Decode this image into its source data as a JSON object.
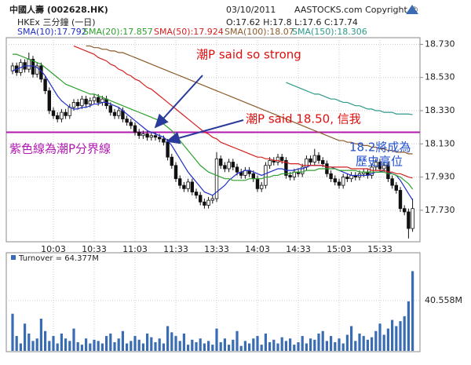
{
  "chart_data": {
    "type": "candlestick",
    "title": "中國人壽 (002628.HK)",
    "subtitle": "HKEx 三分鐘 (一日)",
    "date": "03/10/2011",
    "quote": "O:17.62  H:17.8  L:17.6  C:17.74",
    "copyright": "AASTOCKS.com Copyright ©",
    "categories": [
      null,
      null,
      null,
      null,
      null,
      null,
      null,
      null,
      null,
      null,
      "10:03",
      null,
      null,
      null,
      null,
      null,
      null,
      null,
      null,
      null,
      "10:33",
      null,
      null,
      null,
      null,
      null,
      null,
      null,
      null,
      null,
      "11:03",
      null,
      null,
      null,
      null,
      null,
      null,
      null,
      null,
      null,
      "11:33",
      null,
      null,
      null,
      null,
      null,
      null,
      null,
      null,
      null,
      "13:33",
      null,
      null,
      null,
      null,
      null,
      null,
      null,
      null,
      null,
      "14:03",
      null,
      null,
      null,
      null,
      null,
      null,
      null,
      null,
      null,
      "14:33",
      null,
      null,
      null,
      null,
      null,
      null,
      null,
      null,
      null,
      "15:03",
      null,
      null,
      null,
      null,
      null,
      null,
      null,
      null,
      null,
      "15:33",
      null,
      null,
      null,
      null,
      null,
      null,
      null,
      null
    ],
    "open": [
      18.57,
      18.6,
      18.56,
      18.62,
      18.58,
      18.64,
      18.55,
      18.6,
      18.52,
      18.45,
      18.33,
      18.3,
      18.28,
      18.32,
      18.3,
      18.35,
      18.38,
      18.36,
      18.4,
      18.37,
      18.39,
      18.41,
      18.38,
      18.4,
      18.36,
      18.32,
      18.3,
      18.33,
      18.28,
      18.26,
      18.24,
      18.2,
      18.18,
      18.19,
      18.17,
      18.18,
      18.17,
      18.16,
      18.14,
      18.05,
      18.0,
      17.92,
      17.88,
      17.86,
      17.9,
      17.84,
      17.82,
      17.78,
      17.76,
      17.79,
      17.8,
      18.04,
      18.0,
      17.98,
      18.02,
      17.99,
      17.96,
      17.94,
      17.97,
      17.95,
      17.92,
      17.86,
      17.88,
      18.0,
      18.03,
      18.02,
      18.05,
      18.03,
      17.94,
      17.93,
      17.96,
      17.95,
      17.99,
      18.04,
      18.02,
      18.06,
      18.03,
      18.01,
      17.95,
      17.92,
      17.9,
      17.88,
      17.93,
      17.92,
      17.94,
      17.93,
      17.95,
      17.96,
      17.94,
      17.99,
      18.02,
      17.98,
      18.0,
      17.92,
      17.88,
      17.85,
      17.74,
      17.72,
      17.62
    ],
    "high": [
      18.62,
      18.62,
      18.64,
      18.64,
      18.68,
      18.66,
      18.62,
      18.62,
      18.54,
      18.47,
      18.35,
      18.32,
      18.34,
      18.34,
      18.37,
      18.4,
      18.4,
      18.42,
      18.42,
      18.41,
      18.43,
      18.43,
      18.42,
      18.42,
      18.38,
      18.34,
      18.35,
      18.35,
      18.3,
      18.28,
      18.26,
      18.22,
      18.21,
      18.21,
      18.2,
      18.2,
      18.19,
      18.18,
      18.16,
      18.07,
      18.02,
      17.94,
      17.9,
      17.92,
      17.92,
      17.86,
      17.84,
      17.8,
      17.81,
      17.82,
      18.08,
      18.06,
      18.02,
      18.04,
      18.04,
      18.01,
      17.98,
      17.99,
      17.99,
      17.97,
      17.94,
      17.9,
      18.02,
      18.05,
      18.05,
      18.07,
      18.07,
      18.05,
      17.96,
      17.98,
      17.98,
      18.01,
      18.06,
      18.06,
      18.1,
      18.08,
      18.05,
      18.03,
      17.97,
      17.94,
      17.92,
      17.95,
      17.95,
      17.96,
      17.96,
      17.97,
      17.98,
      17.98,
      18.01,
      18.04,
      18.04,
      18.02,
      18.02,
      17.94,
      17.9,
      17.87,
      17.76,
      17.74,
      17.8
    ],
    "low": [
      18.55,
      18.54,
      18.54,
      18.56,
      18.56,
      18.53,
      18.53,
      18.5,
      18.43,
      18.31,
      18.28,
      18.26,
      18.26,
      18.28,
      18.28,
      18.33,
      18.34,
      18.34,
      18.35,
      18.35,
      18.37,
      18.36,
      18.36,
      18.34,
      18.3,
      18.28,
      18.28,
      18.26,
      18.24,
      18.22,
      18.18,
      18.16,
      18.16,
      18.15,
      18.15,
      18.15,
      18.14,
      18.12,
      18.03,
      17.98,
      17.9,
      17.86,
      17.84,
      17.84,
      17.82,
      17.8,
      17.76,
      17.74,
      17.74,
      17.77,
      17.78,
      17.98,
      17.96,
      17.96,
      17.97,
      17.94,
      17.92,
      17.92,
      17.93,
      17.9,
      17.84,
      17.84,
      17.86,
      17.98,
      18.0,
      18.0,
      18.01,
      17.92,
      17.91,
      17.91,
      17.93,
      17.93,
      17.97,
      18.0,
      18.0,
      18.01,
      17.99,
      17.93,
      17.9,
      17.88,
      17.86,
      17.86,
      17.9,
      17.9,
      17.91,
      17.91,
      17.93,
      17.92,
      17.92,
      17.97,
      17.96,
      17.96,
      17.9,
      17.86,
      17.83,
      17.72,
      17.7,
      17.56,
      17.6
    ],
    "close": [
      18.6,
      18.56,
      18.62,
      18.58,
      18.64,
      18.55,
      18.6,
      18.52,
      18.45,
      18.33,
      18.3,
      18.28,
      18.32,
      18.3,
      18.35,
      18.38,
      18.36,
      18.4,
      18.37,
      18.39,
      18.41,
      18.38,
      18.4,
      18.36,
      18.32,
      18.3,
      18.33,
      18.28,
      18.26,
      18.24,
      18.2,
      18.18,
      18.19,
      18.17,
      18.18,
      18.17,
      18.16,
      18.14,
      18.05,
      18.0,
      17.92,
      17.88,
      17.86,
      17.9,
      17.84,
      17.82,
      17.78,
      17.76,
      17.79,
      17.8,
      18.04,
      18.0,
      17.98,
      18.02,
      17.99,
      17.96,
      17.94,
      17.97,
      17.95,
      17.92,
      17.86,
      17.88,
      18.0,
      18.03,
      18.02,
      18.05,
      18.03,
      17.94,
      17.93,
      17.96,
      17.95,
      17.99,
      18.04,
      18.02,
      18.06,
      18.03,
      18.01,
      17.95,
      17.92,
      17.9,
      17.88,
      17.93,
      17.92,
      17.94,
      17.93,
      17.95,
      17.96,
      17.94,
      17.99,
      18.02,
      17.98,
      18.0,
      17.92,
      17.88,
      17.85,
      17.74,
      17.72,
      17.62,
      17.74
    ],
    "lines": [
      {
        "name": "SMA(10):17.792",
        "color": "#1f2fc8",
        "values": [
          18.57,
          18.58,
          18.59,
          18.6,
          18.6,
          18.6,
          18.59,
          18.57,
          18.54,
          18.5,
          18.46,
          18.42,
          18.39,
          18.37,
          18.35,
          18.34,
          18.34,
          18.35,
          18.35,
          18.36,
          18.37,
          18.37,
          18.38,
          18.38,
          18.37,
          18.36,
          18.35,
          18.33,
          18.31,
          18.29,
          18.27,
          18.25,
          18.23,
          18.21,
          18.2,
          18.19,
          18.18,
          18.17,
          18.15,
          18.12,
          18.08,
          18.04,
          18.0,
          17.96,
          17.93,
          17.9,
          17.87,
          17.84,
          17.83,
          17.82,
          17.84,
          17.86,
          17.88,
          17.91,
          17.93,
          17.95,
          17.96,
          17.97,
          17.97,
          17.96,
          17.95,
          17.94,
          17.95,
          17.96,
          17.97,
          17.98,
          17.98,
          17.97,
          17.97,
          17.97,
          17.98,
          17.98,
          17.99,
          18.0,
          18.0,
          18.0,
          18.0,
          17.99,
          17.99,
          17.98,
          17.97,
          17.96,
          17.95,
          17.94,
          17.94,
          17.94,
          17.94,
          17.94,
          17.95,
          17.96,
          17.96,
          17.97,
          17.96,
          17.95,
          17.94,
          17.91,
          17.87,
          17.83,
          17.792
        ]
      },
      {
        "name": "SMA(20):17.857",
        "color": "#2ea02e",
        "values": [
          18.67,
          18.67,
          18.66,
          18.65,
          18.64,
          18.63,
          18.62,
          18.61,
          18.59,
          18.57,
          18.55,
          18.53,
          18.51,
          18.49,
          18.48,
          18.47,
          18.46,
          18.45,
          18.44,
          18.43,
          18.43,
          18.42,
          18.41,
          18.4,
          18.39,
          18.38,
          18.37,
          18.36,
          18.35,
          18.34,
          18.33,
          18.32,
          18.31,
          18.3,
          18.29,
          18.28,
          18.27,
          18.25,
          18.23,
          18.21,
          18.18,
          18.15,
          18.12,
          18.09,
          18.06,
          18.03,
          18.0,
          17.98,
          17.96,
          17.95,
          17.94,
          17.93,
          17.92,
          17.92,
          17.91,
          17.91,
          17.91,
          17.91,
          17.92,
          17.92,
          17.92,
          17.92,
          17.93,
          17.93,
          17.94,
          17.94,
          17.95,
          17.95,
          17.95,
          17.96,
          17.96,
          17.96,
          17.97,
          17.97,
          17.97,
          17.98,
          17.98,
          17.98,
          17.98,
          17.98,
          17.97,
          17.97,
          17.97,
          17.97,
          17.97,
          17.96,
          17.96,
          17.96,
          17.96,
          17.96,
          17.96,
          17.96,
          17.95,
          17.95,
          17.94,
          17.93,
          17.91,
          17.89,
          17.857
        ]
      },
      {
        "name": "SMA(50):17.924",
        "color": "#d42020",
        "values": [
          null,
          null,
          null,
          null,
          null,
          null,
          null,
          null,
          null,
          null,
          null,
          null,
          null,
          null,
          null,
          18.72,
          18.71,
          18.7,
          18.69,
          18.68,
          18.67,
          18.65,
          18.64,
          18.63,
          18.61,
          18.6,
          18.58,
          18.57,
          18.55,
          18.54,
          18.52,
          18.51,
          18.49,
          18.47,
          18.46,
          18.44,
          18.42,
          18.4,
          18.38,
          18.36,
          18.34,
          18.32,
          18.3,
          18.28,
          18.26,
          18.24,
          18.22,
          18.2,
          18.19,
          18.17,
          18.16,
          18.14,
          18.13,
          18.12,
          18.11,
          18.1,
          18.09,
          18.08,
          18.07,
          18.06,
          18.05,
          18.05,
          18.04,
          18.04,
          18.03,
          18.03,
          18.02,
          18.02,
          18.01,
          18.01,
          18.01,
          18.0,
          18.0,
          18.0,
          18.0,
          18.0,
          18.0,
          17.99,
          17.99,
          17.99,
          17.99,
          17.99,
          17.99,
          17.98,
          17.98,
          17.98,
          17.98,
          17.98,
          17.97,
          17.97,
          17.97,
          17.97,
          17.96,
          17.96,
          17.95,
          17.95,
          17.94,
          17.93,
          17.924
        ]
      },
      {
        "name": "SMA(100):18.07",
        "color": "#8b5a2b",
        "values": [
          null,
          null,
          null,
          null,
          null,
          null,
          null,
          null,
          null,
          null,
          null,
          null,
          null,
          null,
          null,
          null,
          null,
          null,
          18.72,
          18.72,
          18.71,
          18.71,
          18.7,
          18.7,
          18.69,
          18.69,
          18.68,
          18.68,
          18.67,
          18.66,
          18.65,
          18.64,
          18.63,
          18.62,
          18.61,
          18.6,
          18.59,
          18.58,
          18.57,
          18.56,
          18.55,
          18.54,
          18.53,
          18.52,
          18.51,
          18.5,
          18.49,
          18.48,
          18.47,
          18.46,
          18.45,
          18.44,
          18.43,
          18.42,
          18.41,
          18.4,
          18.39,
          18.38,
          18.37,
          18.36,
          18.35,
          18.34,
          18.33,
          18.32,
          18.31,
          18.3,
          18.29,
          18.28,
          18.27,
          18.26,
          18.25,
          18.24,
          18.23,
          18.22,
          18.21,
          18.2,
          18.19,
          18.18,
          18.17,
          18.16,
          18.15,
          18.15,
          18.14,
          18.14,
          18.13,
          18.13,
          18.12,
          18.12,
          18.11,
          18.11,
          18.1,
          18.1,
          18.09,
          18.09,
          18.08,
          18.08,
          18.08,
          18.07,
          18.07
        ]
      },
      {
        "name": "SMA(150):18.306",
        "color": "#2e9a8a",
        "values": [
          null,
          null,
          null,
          null,
          null,
          null,
          null,
          null,
          null,
          null,
          null,
          null,
          null,
          null,
          null,
          null,
          null,
          null,
          null,
          null,
          null,
          null,
          null,
          null,
          null,
          null,
          null,
          null,
          null,
          null,
          null,
          null,
          null,
          null,
          null,
          null,
          null,
          null,
          null,
          null,
          null,
          null,
          null,
          null,
          null,
          null,
          null,
          null,
          null,
          null,
          null,
          null,
          null,
          null,
          null,
          null,
          null,
          null,
          null,
          null,
          null,
          null,
          null,
          null,
          null,
          null,
          null,
          18.5,
          18.49,
          18.48,
          18.47,
          18.46,
          18.45,
          18.44,
          18.43,
          18.43,
          18.42,
          18.41,
          18.4,
          18.4,
          18.39,
          18.38,
          18.38,
          18.37,
          18.36,
          18.36,
          18.35,
          18.34,
          18.34,
          18.33,
          18.33,
          18.32,
          18.32,
          18.32,
          18.31,
          18.31,
          18.31,
          18.31,
          18.306
        ]
      }
    ],
    "ylim": [
      17.54,
      18.77
    ],
    "yticks": [
      {
        "value": 17.73,
        "label": "17.730"
      },
      {
        "value": 17.93,
        "label": "17.930"
      },
      {
        "value": 18.13,
        "label": "18.130"
      },
      {
        "value": 18.33,
        "label": "18.330"
      },
      {
        "value": 18.53,
        "label": "18.530"
      },
      {
        "value": 18.73,
        "label": "18.730"
      }
    ],
    "grid": true,
    "hline": {
      "value": 18.2,
      "color": "#b01ab0"
    },
    "annotations": [
      {
        "text": "潮P said so strong",
        "color": "#e01010"
      },
      {
        "text": "潮P said 18.50, 信我",
        "color": "#e01010"
      },
      {
        "text": "紫色線為潮P分界線",
        "color": "#b01ab0"
      },
      {
        "text": "18.2將成為",
        "color": "#2050d0"
      },
      {
        "text": "歷史高位",
        "color": "#2050d0"
      }
    ],
    "volume": {
      "label": "Turnover = 64.377M",
      "color": "#3a6cb4",
      "ylim": [
        0,
        71
      ],
      "yticks": [
        {
          "value": 40.558,
          "label": "40.558M"
        }
      ],
      "values": [
        30,
        12,
        6,
        22,
        14,
        8,
        10,
        26,
        16,
        8,
        12,
        6,
        14,
        10,
        8,
        18,
        7,
        5,
        10,
        6,
        9,
        8,
        6,
        12,
        14,
        7,
        10,
        16,
        6,
        8,
        12,
        9,
        6,
        14,
        11,
        7,
        10,
        6,
        20,
        15,
        12,
        8,
        14,
        5,
        9,
        7,
        10,
        6,
        8,
        5,
        18,
        7,
        10,
        5,
        9,
        16,
        4,
        8,
        6,
        10,
        12,
        5,
        14,
        7,
        9,
        6,
        11,
        8,
        10,
        5,
        7,
        12,
        6,
        10,
        9,
        14,
        16,
        8,
        12,
        7,
        10,
        6,
        13,
        20,
        8,
        14,
        12,
        9,
        11,
        16,
        22,
        13,
        18,
        25,
        20,
        24,
        28,
        40,
        64.377
      ]
    }
  }
}
